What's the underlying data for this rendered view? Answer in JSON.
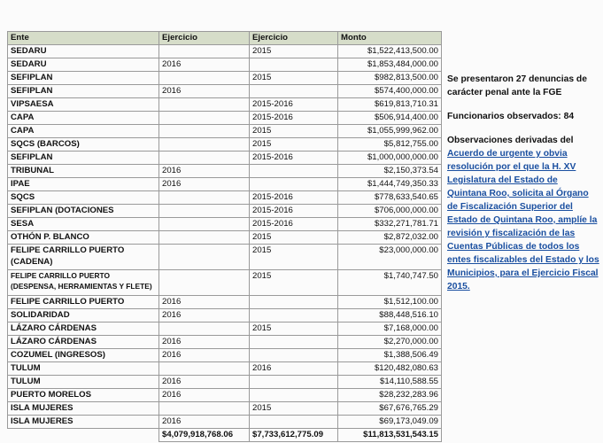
{
  "table": {
    "headers": [
      "Ente",
      "Ejercicio",
      "Ejercicio",
      "Monto"
    ],
    "rows": [
      {
        "ente": "SEDARU",
        "ej1": "",
        "ej2": "2015",
        "monto": "$1,522,413,500.00"
      },
      {
        "ente": "SEDARU",
        "ej1": "2016",
        "ej2": "",
        "monto": "$1,853,484,000.00"
      },
      {
        "ente": "SEFIPLAN",
        "ej1": "",
        "ej2": "2015",
        "monto": "$982,813,500.00"
      },
      {
        "ente": "SEFIPLAN",
        "ej1": "2016",
        "ej2": "",
        "monto": "$574,400,000.00"
      },
      {
        "ente": "VIPSAESA",
        "ej1": "",
        "ej2": "2015-2016",
        "monto": "$619,813,710.31"
      },
      {
        "ente": "CAPA",
        "ej1": "",
        "ej2": "2015-2016",
        "monto": "$506,914,400.00"
      },
      {
        "ente": "CAPA",
        "ej1": "",
        "ej2": "2015",
        "monto": "$1,055,999,962.00"
      },
      {
        "ente": "SQCS (BARCOS)",
        "ej1": "",
        "ej2": "2015",
        "monto": "$5,812,755.00"
      },
      {
        "ente": "SEFIPLAN",
        "ej1": "",
        "ej2": "2015-2016",
        "monto": "$1,000,000,000.00"
      },
      {
        "ente": "TRIBUNAL",
        "ej1": "2016",
        "ej2": "",
        "monto": "$2,150,373.54"
      },
      {
        "ente": "IPAE",
        "ej1": "2016",
        "ej2": "",
        "monto": "$1,444,749,350.33"
      },
      {
        "ente": "SQCS",
        "ej1": "",
        "ej2": "2015-2016",
        "monto": "$778,633,540.65"
      },
      {
        "ente": "SEFIPLAN (DOTACIONES",
        "ej1": "",
        "ej2": "2015-2016",
        "monto": "$706,000,000.00"
      },
      {
        "ente": "SESA",
        "ej1": "",
        "ej2": "2015-2016",
        "monto": "$332,271,781.71"
      },
      {
        "ente": "OTHÓN P. BLANCO",
        "ej1": "",
        "ej2": "2015",
        "monto": "$2,872,032.00"
      },
      {
        "ente": "FELIPE CARRILLO PUERTO (CADENA)",
        "ej1": "",
        "ej2": "2015",
        "monto": "$23,000,000.00"
      },
      {
        "ente": "FELIPE CARRILLO PUERTO (DESPENSA, HERRAMIENTAS Y FLETE)",
        "ej1": "",
        "ej2": "2015",
        "monto": "$1,740,747.50"
      },
      {
        "ente": "FELIPE CARRILLO PUERTO",
        "ej1": "2016",
        "ej2": "",
        "monto": "$1,512,100.00"
      },
      {
        "ente": "SOLIDARIDAD",
        "ej1": "2016",
        "ej2": "",
        "monto": "$88,448,516.10"
      },
      {
        "ente": "LÁZARO CÁRDENAS",
        "ej1": "",
        "ej2": "2015",
        "monto": "$7,168,000.00"
      },
      {
        "ente": "LÁZARO CÁRDENAS",
        "ej1": "2016",
        "ej2": "",
        "monto": "$2,270,000.00"
      },
      {
        "ente": "COZUMEL (INGRESOS)",
        "ej1": "2016",
        "ej2": "",
        "monto": "$1,388,506.49"
      },
      {
        "ente": "TULUM",
        "ej1": "",
        "ej2": "2016",
        "monto": "$120,482,080.63"
      },
      {
        "ente": "TULUM",
        "ej1": "2016",
        "ej2": "",
        "monto": "$14,110,588.55"
      },
      {
        "ente": "PUERTO MORELOS",
        "ej1": "2016",
        "ej2": "",
        "monto": "$28,232,283.96"
      },
      {
        "ente": "ISLA MUJERES",
        "ej1": "",
        "ej2": "2015",
        "monto": "$67,676,765.29"
      },
      {
        "ente": "ISLA MUJERES",
        "ej1": "2016",
        "ej2": "",
        "monto": "$69,173,049.09"
      }
    ],
    "totals": {
      "ej1": "$4,079,918,768.06",
      "ej2": "$7,733,612,775.09",
      "monto": "$11,813,531,543.15"
    }
  },
  "side": {
    "denuncias": "Se presentaron 27 denuncias de carácter penal ante la FGE",
    "funcionarios": "Funcionarios observados: 84",
    "observaciones_intro": "Observaciones derivadas del",
    "observaciones_link": "Acuerdo de urgente y obvia resolución por el que la H. XV Legislatura del Estado de Quintana Roo, solicita al Órgano de Fiscalización Superior del Estado de Quintana Roo, amplíe la revisión y fiscalización de las Cuentas Públicas de todos los entes fiscalizables del Estado y los Municipios, para el Ejercicio Fiscal 2015."
  }
}
